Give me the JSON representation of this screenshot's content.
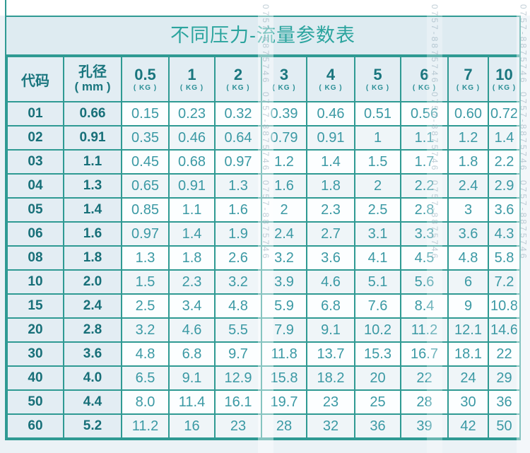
{
  "chart_data": {
    "type": "table",
    "title": "不同压力-流量参数表",
    "header": {
      "code_label": "代码",
      "aperture_label_line1": "孔径",
      "aperture_label_line2": "( mm )",
      "pressure_unit": "( KG )",
      "pressures_kg": [
        "0.5",
        "1",
        "2",
        "3",
        "4",
        "5",
        "6",
        "7",
        "10"
      ]
    },
    "rows": [
      {
        "code": "01",
        "aperture_mm": "0.66",
        "flows": [
          "0.15",
          "0.23",
          "0.32",
          "0.39",
          "0.46",
          "0.51",
          "0.56",
          "0.60",
          "0.72"
        ]
      },
      {
        "code": "02",
        "aperture_mm": "0.91",
        "flows": [
          "0.35",
          "0.46",
          "0.64",
          "0.79",
          "0.91",
          "1",
          "1.1",
          "1.2",
          "1.4"
        ]
      },
      {
        "code": "03",
        "aperture_mm": "1.1",
        "flows": [
          "0.45",
          "0.68",
          "0.97",
          "1.2",
          "1.4",
          "1.5",
          "1.7",
          "1.8",
          "2.2"
        ]
      },
      {
        "code": "04",
        "aperture_mm": "1.3",
        "flows": [
          "0.65",
          "0.91",
          "1.3",
          "1.6",
          "1.8",
          "2",
          "2.2",
          "2.4",
          "2.9"
        ]
      },
      {
        "code": "05",
        "aperture_mm": "1.4",
        "flows": [
          "0.85",
          "1.1",
          "1.6",
          "2",
          "2.3",
          "2.5",
          "2.8",
          "3",
          "3.6"
        ]
      },
      {
        "code": "06",
        "aperture_mm": "1.6",
        "flows": [
          "0.97",
          "1.4",
          "1.9",
          "2.4",
          "2.7",
          "3.1",
          "3.3",
          "3.6",
          "4.3"
        ]
      },
      {
        "code": "08",
        "aperture_mm": "1.8",
        "flows": [
          "1.3",
          "1.8",
          "2.6",
          "3.2",
          "3.6",
          "4.1",
          "4.5",
          "4.8",
          "5.8"
        ]
      },
      {
        "code": "10",
        "aperture_mm": "2.0",
        "flows": [
          "1.5",
          "2.3",
          "3.2",
          "3.9",
          "4.6",
          "5.1",
          "5.6",
          "6",
          "7.2"
        ]
      },
      {
        "code": "15",
        "aperture_mm": "2.4",
        "flows": [
          "2.5",
          "3.4",
          "4.8",
          "5.9",
          "6.8",
          "7.6",
          "8.4",
          "9",
          "10.8"
        ]
      },
      {
        "code": "20",
        "aperture_mm": "2.8",
        "flows": [
          "3.2",
          "4.6",
          "5.5",
          "7.9",
          "9.1",
          "10.2",
          "11.2",
          "12.1",
          "14.6"
        ]
      },
      {
        "code": "30",
        "aperture_mm": "3.6",
        "flows": [
          "4.8",
          "6.8",
          "9.7",
          "11.8",
          "13.7",
          "15.3",
          "16.7",
          "18.1",
          "22"
        ]
      },
      {
        "code": "40",
        "aperture_mm": "4.0",
        "flows": [
          "6.5",
          "9.1",
          "12.9",
          "15.8",
          "18.2",
          "20",
          "22",
          "24",
          "29"
        ]
      },
      {
        "code": "50",
        "aperture_mm": "4.4",
        "flows": [
          "8.0",
          "11.4",
          "16.1",
          "19.7",
          "23",
          "25",
          "28",
          "30",
          "36"
        ]
      },
      {
        "code": "60",
        "aperture_mm": "5.2",
        "flows": [
          "11.2",
          "16",
          "23",
          "28",
          "32",
          "36",
          "39",
          "42",
          "50"
        ]
      }
    ],
    "layout_hints": {
      "grid": "on",
      "first_two_columns_shaded": true
    }
  },
  "watermark": {
    "text": "0757-8875746"
  },
  "colors": {
    "border_teal": "#2f9a93",
    "title_text": "#2ba49e",
    "header_text": "#1a767e",
    "data_text": "#3b99a4",
    "shaded_cell_bg": "#e3edf3",
    "title_band_bg": "#deebf1",
    "page_bg": "#ebf2f6"
  }
}
